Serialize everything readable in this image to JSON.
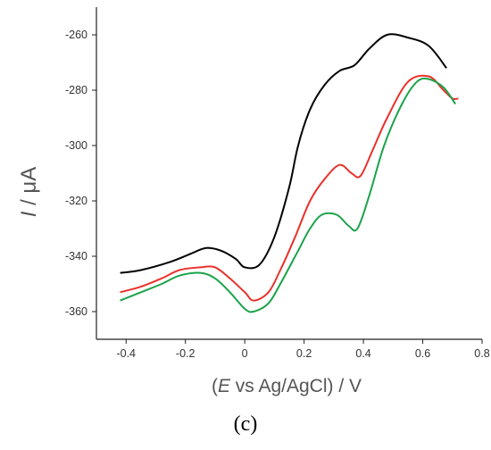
{
  "panel_label": "(c)",
  "chart_data": {
    "type": "line",
    "xlabel_parts": {
      "open": "(",
      "italic": "E",
      "rest": " vs Ag/AgCl) / V"
    },
    "ylabel_parts": {
      "italic": "I",
      "rest": " / μA"
    },
    "xlim": [
      -0.5,
      0.8
    ],
    "ylim": [
      -370,
      -250
    ],
    "xticks": [
      -0.4,
      -0.2,
      0,
      0.2,
      0.4,
      0.6,
      0.8
    ],
    "xtick_labels": [
      "-0.4",
      "-0.2",
      "0",
      "0.2",
      "0.4",
      "0.6",
      "0.8"
    ],
    "yticks": [
      -360,
      -340,
      -320,
      -300,
      -280,
      -260
    ],
    "ytick_labels": [
      "-360",
      "-340",
      "-320",
      "-300",
      "-280",
      "-260"
    ],
    "grid": false,
    "series": [
      {
        "color": "#000000",
        "points": [
          [
            -0.42,
            -346
          ],
          [
            -0.35,
            -345
          ],
          [
            -0.25,
            -342
          ],
          [
            -0.18,
            -339
          ],
          [
            -0.13,
            -337
          ],
          [
            -0.08,
            -338
          ],
          [
            -0.03,
            -341
          ],
          [
            0.0,
            -344
          ],
          [
            0.05,
            -343
          ],
          [
            0.1,
            -333
          ],
          [
            0.15,
            -315
          ],
          [
            0.18,
            -300
          ],
          [
            0.22,
            -287
          ],
          [
            0.27,
            -278
          ],
          [
            0.32,
            -273
          ],
          [
            0.37,
            -271
          ],
          [
            0.42,
            -265
          ],
          [
            0.48,
            -260
          ],
          [
            0.55,
            -261
          ],
          [
            0.62,
            -264
          ],
          [
            0.68,
            -272
          ]
        ]
      },
      {
        "color": "#e8322b",
        "points": [
          [
            -0.42,
            -353
          ],
          [
            -0.35,
            -351
          ],
          [
            -0.28,
            -348
          ],
          [
            -0.22,
            -345
          ],
          [
            -0.15,
            -344
          ],
          [
            -0.1,
            -344
          ],
          [
            -0.05,
            -348
          ],
          [
            0.0,
            -353
          ],
          [
            0.03,
            -356
          ],
          [
            0.08,
            -353
          ],
          [
            0.12,
            -345
          ],
          [
            0.17,
            -333
          ],
          [
            0.22,
            -320
          ],
          [
            0.27,
            -312
          ],
          [
            0.32,
            -307
          ],
          [
            0.36,
            -310
          ],
          [
            0.39,
            -311
          ],
          [
            0.43,
            -302
          ],
          [
            0.48,
            -290
          ],
          [
            0.55,
            -277
          ],
          [
            0.62,
            -275
          ],
          [
            0.67,
            -280
          ],
          [
            0.7,
            -283
          ],
          [
            0.72,
            -283
          ]
        ]
      },
      {
        "color": "#1aa34a",
        "points": [
          [
            -0.42,
            -356
          ],
          [
            -0.35,
            -353
          ],
          [
            -0.28,
            -350
          ],
          [
            -0.22,
            -347
          ],
          [
            -0.15,
            -346
          ],
          [
            -0.1,
            -348
          ],
          [
            -0.05,
            -353
          ],
          [
            0.0,
            -359
          ],
          [
            0.03,
            -360
          ],
          [
            0.08,
            -357
          ],
          [
            0.12,
            -350
          ],
          [
            0.18,
            -338
          ],
          [
            0.22,
            -330
          ],
          [
            0.26,
            -325
          ],
          [
            0.31,
            -325
          ],
          [
            0.35,
            -329
          ],
          [
            0.38,
            -330
          ],
          [
            0.42,
            -318
          ],
          [
            0.47,
            -300
          ],
          [
            0.53,
            -285
          ],
          [
            0.58,
            -277
          ],
          [
            0.62,
            -276
          ],
          [
            0.67,
            -279
          ],
          [
            0.71,
            -285
          ]
        ]
      }
    ]
  }
}
